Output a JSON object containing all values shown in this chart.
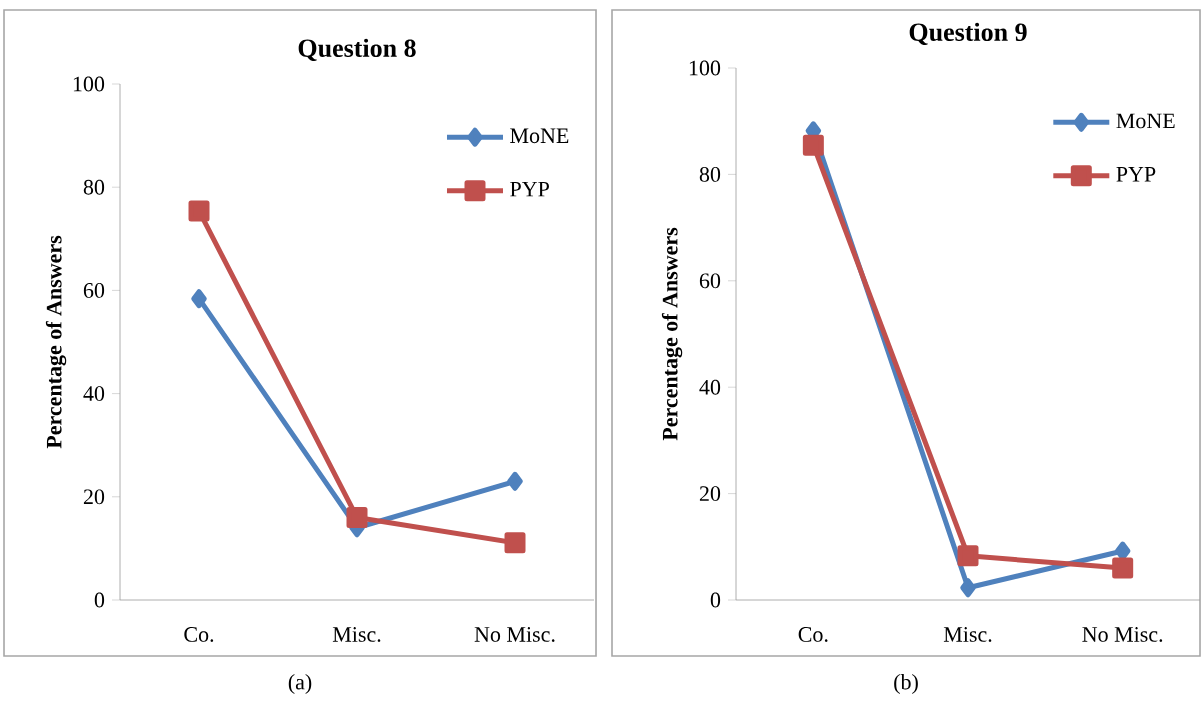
{
  "chart_data": [
    {
      "type": "line",
      "title": "Question 8",
      "ylabel": "Percentage of Answers",
      "categories": [
        "Co.",
        "Misc.",
        "No Misc."
      ],
      "ylim": [
        0,
        100
      ],
      "yticks": [
        0,
        20,
        40,
        60,
        80,
        100
      ],
      "legend": "top right",
      "grid": false,
      "line_style": "solid",
      "series": [
        {
          "name": "MoNE",
          "color": "#4f81bd",
          "marker": "diamond",
          "values": [
            58.4,
            14,
            23
          ]
        },
        {
          "name": "PYP",
          "color": "#c0504d",
          "marker": "square",
          "values": [
            75.4,
            16,
            11.1
          ]
        }
      ],
      "annotations": [
        "(a)"
      ]
    },
    {
      "type": "line",
      "title": "Question 9",
      "ylabel": "Percentage of Answers",
      "categories": [
        "Co.",
        "Misc.",
        "No Misc."
      ],
      "ylim": [
        0,
        100
      ],
      "yticks": [
        0,
        20,
        40,
        60,
        80,
        100
      ],
      "legend": "top right",
      "grid": false,
      "line_style": "solid",
      "series": [
        {
          "name": "MoNE",
          "color": "#4f81bd",
          "marker": "diamond",
          "values": [
            88.2,
            2.3,
            9.2
          ]
        },
        {
          "name": "PYP",
          "color": "#c0504d",
          "marker": "square",
          "values": [
            85.5,
            8.3,
            6
          ]
        }
      ],
      "annotations": [
        "(b)"
      ]
    }
  ]
}
